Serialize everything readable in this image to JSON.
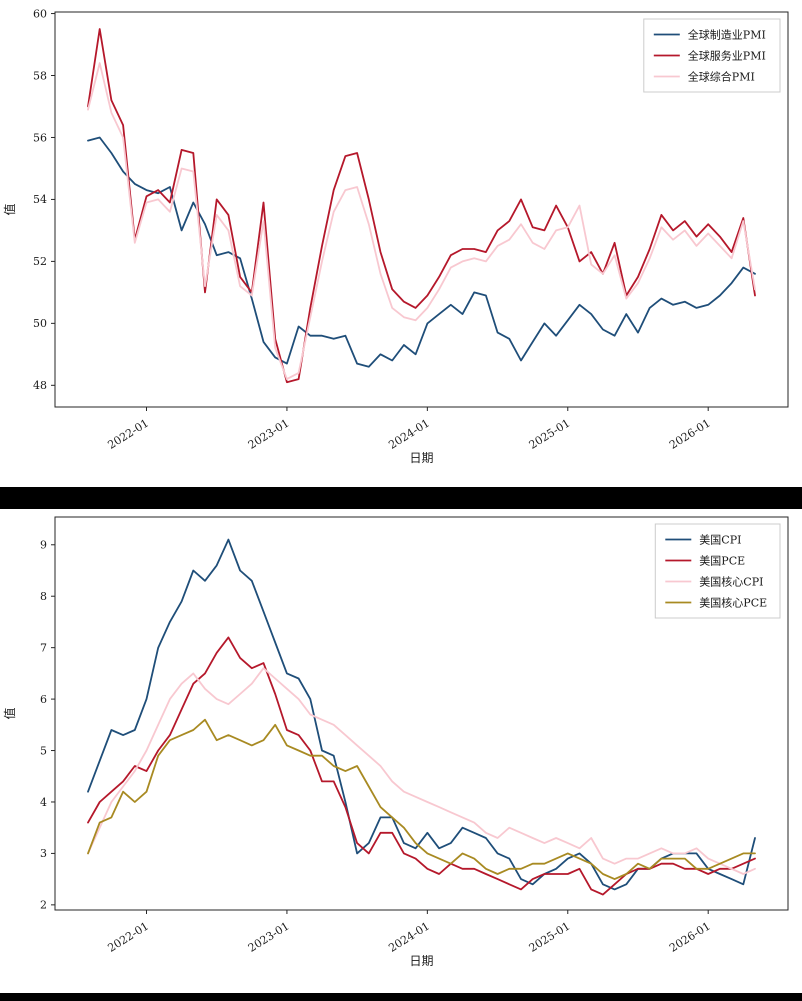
{
  "page": {
    "background": "#ffffff",
    "divider_color": "#000000"
  },
  "chart_data": [
    {
      "type": "line",
      "title": "",
      "xlabel": "日期",
      "ylabel": "值",
      "grid": false,
      "legend_position": "upper-right",
      "ylim": [
        47.3,
        60.05
      ],
      "yticks": [
        48,
        50,
        52,
        54,
        56,
        58,
        60
      ],
      "xticks": [
        "2022-01",
        "2023-01",
        "2024-01",
        "2025-01",
        "2026-01"
      ],
      "x": [
        "2021-08",
        "2021-09",
        "2021-10",
        "2021-11",
        "2021-12",
        "2022-01",
        "2022-02",
        "2022-03",
        "2022-04",
        "2022-05",
        "2022-06",
        "2022-07",
        "2022-08",
        "2022-09",
        "2022-10",
        "2022-11",
        "2022-12",
        "2023-01",
        "2023-02",
        "2023-03",
        "2023-04",
        "2023-05",
        "2023-06",
        "2023-07",
        "2023-08",
        "2023-09",
        "2023-10",
        "2023-11",
        "2023-12",
        "2024-01",
        "2024-02",
        "2024-03",
        "2024-04",
        "2024-05",
        "2024-06",
        "2024-07",
        "2024-08",
        "2024-09",
        "2024-10",
        "2024-11",
        "2024-12",
        "2025-01",
        "2025-02",
        "2025-03",
        "2025-04",
        "2025-05",
        "2025-06",
        "2025-07",
        "2025-08",
        "2025-09",
        "2025-10",
        "2025-11",
        "2025-12",
        "2026-01",
        "2026-02",
        "2026-03",
        "2026-04",
        "2026-05"
      ],
      "series": [
        {
          "name": "全球制造业PMI",
          "color": "#1f4e79",
          "values": [
            55.9,
            56.0,
            55.5,
            54.9,
            54.5,
            54.3,
            54.2,
            54.4,
            53.0,
            53.9,
            53.2,
            52.2,
            52.3,
            52.1,
            50.8,
            49.4,
            48.9,
            48.7,
            49.9,
            49.6,
            49.6,
            49.5,
            49.6,
            48.7,
            48.6,
            49.0,
            48.8,
            49.3,
            49.0,
            50.0,
            50.3,
            50.6,
            50.3,
            51.0,
            50.9,
            49.7,
            49.5,
            48.8,
            49.4,
            50.0,
            49.6,
            50.1,
            50.6,
            50.3,
            49.8,
            49.6,
            50.3,
            49.7,
            50.5,
            50.8,
            50.6,
            50.7,
            50.5,
            50.6,
            50.9,
            51.3,
            51.8,
            51.6
          ]
        },
        {
          "name": "全球服务业PMI",
          "color": "#b5182b",
          "values": [
            57.0,
            59.5,
            57.2,
            56.4,
            52.7,
            54.1,
            54.3,
            53.9,
            55.6,
            55.5,
            51.0,
            54.0,
            53.5,
            51.5,
            51.0,
            53.9,
            49.5,
            48.1,
            48.2,
            50.5,
            52.5,
            54.3,
            55.4,
            55.5,
            54.0,
            52.3,
            51.1,
            50.7,
            50.5,
            50.9,
            51.5,
            52.2,
            52.4,
            52.4,
            52.3,
            53.0,
            53.3,
            54.0,
            53.1,
            53.0,
            53.8,
            53.1,
            52.0,
            52.3,
            51.6,
            52.6,
            50.9,
            51.5,
            52.4,
            53.5,
            53.0,
            53.3,
            52.8,
            53.2,
            52.8,
            52.3,
            53.4,
            50.9
          ]
        },
        {
          "name": "全球综合PMI",
          "color": "#f8c8d0",
          "values": [
            56.9,
            58.4,
            56.8,
            56.0,
            52.6,
            53.9,
            54.0,
            53.6,
            55.0,
            54.9,
            51.2,
            53.5,
            53.0,
            51.2,
            50.9,
            53.3,
            49.2,
            48.2,
            48.4,
            50.2,
            52.0,
            53.6,
            54.3,
            54.4,
            53.2,
            51.6,
            50.5,
            50.2,
            50.1,
            50.5,
            51.1,
            51.8,
            52.0,
            52.1,
            52.0,
            52.5,
            52.7,
            53.2,
            52.6,
            52.4,
            53.0,
            53.1,
            53.8,
            51.9,
            51.6,
            52.2,
            50.8,
            51.3,
            52.1,
            53.1,
            52.7,
            53.0,
            52.5,
            52.9,
            52.5,
            52.1,
            53.3,
            51.1
          ]
        }
      ]
    },
    {
      "type": "line",
      "title": "",
      "xlabel": "日期",
      "ylabel": "值",
      "grid": false,
      "legend_position": "upper-right",
      "ylim": [
        1.9,
        9.54
      ],
      "yticks": [
        2,
        3,
        4,
        5,
        6,
        7,
        8,
        9
      ],
      "xticks": [
        "2022-01",
        "2023-01",
        "2024-01",
        "2025-01",
        "2026-01"
      ],
      "x": [
        "2021-08",
        "2021-09",
        "2021-10",
        "2021-11",
        "2021-12",
        "2022-01",
        "2022-02",
        "2022-03",
        "2022-04",
        "2022-05",
        "2022-06",
        "2022-07",
        "2022-08",
        "2022-09",
        "2022-10",
        "2022-11",
        "2022-12",
        "2023-01",
        "2023-02",
        "2023-03",
        "2023-04",
        "2023-05",
        "2023-06",
        "2023-07",
        "2023-08",
        "2023-09",
        "2023-10",
        "2023-11",
        "2023-12",
        "2024-01",
        "2024-02",
        "2024-03",
        "2024-04",
        "2024-05",
        "2024-06",
        "2024-07",
        "2024-08",
        "2024-09",
        "2024-10",
        "2024-11",
        "2024-12",
        "2025-01",
        "2025-02",
        "2025-03",
        "2025-04",
        "2025-05",
        "2025-06",
        "2025-07",
        "2025-08",
        "2025-09",
        "2025-10",
        "2025-11",
        "2025-12",
        "2026-01",
        "2026-02",
        "2026-03",
        "2026-04",
        "2026-05"
      ],
      "series": [
        {
          "name": "美国CPI",
          "color": "#1f4e79",
          "values": [
            4.2,
            4.8,
            5.4,
            5.3,
            5.4,
            6.0,
            7.0,
            7.5,
            7.9,
            8.5,
            8.3,
            8.6,
            9.1,
            8.5,
            8.3,
            7.7,
            7.1,
            6.5,
            6.4,
            6.0,
            5.0,
            4.9,
            4.0,
            3.0,
            3.2,
            3.7,
            3.7,
            3.2,
            3.1,
            3.4,
            3.1,
            3.2,
            3.5,
            3.4,
            3.3,
            3.0,
            2.9,
            2.5,
            2.4,
            2.6,
            2.7,
            2.9,
            3.0,
            2.8,
            2.4,
            2.3,
            2.4,
            2.7,
            2.7,
            2.9,
            3.0,
            3.0,
            3.0,
            2.7,
            2.6,
            2.5,
            2.4,
            3.3
          ]
        },
        {
          "name": "美国PCE",
          "color": "#b5182b",
          "values": [
            3.6,
            4.0,
            4.2,
            4.4,
            4.7,
            4.6,
            5.0,
            5.3,
            5.8,
            6.3,
            6.5,
            6.9,
            7.2,
            6.8,
            6.6,
            6.7,
            6.1,
            5.4,
            5.3,
            5.0,
            4.4,
            4.4,
            3.9,
            3.2,
            3.0,
            3.4,
            3.4,
            3.0,
            2.9,
            2.7,
            2.6,
            2.8,
            2.7,
            2.7,
            2.6,
            2.5,
            2.4,
            2.3,
            2.5,
            2.6,
            2.6,
            2.6,
            2.7,
            2.3,
            2.2,
            2.4,
            2.6,
            2.7,
            2.7,
            2.8,
            2.8,
            2.7,
            2.7,
            2.6,
            2.7,
            2.7,
            2.8,
            2.9
          ]
        },
        {
          "name": "美国核心CPI",
          "color": "#f8c8d0",
          "values": [
            3.0,
            3.5,
            4.0,
            4.3,
            4.6,
            5.0,
            5.5,
            6.0,
            6.3,
            6.5,
            6.2,
            6.0,
            5.9,
            6.1,
            6.3,
            6.6,
            6.4,
            6.2,
            6.0,
            5.7,
            5.6,
            5.5,
            5.3,
            5.1,
            4.9,
            4.7,
            4.4,
            4.2,
            4.1,
            4.0,
            3.9,
            3.8,
            3.7,
            3.6,
            3.4,
            3.3,
            3.5,
            3.4,
            3.3,
            3.2,
            3.3,
            3.2,
            3.1,
            3.3,
            2.9,
            2.8,
            2.9,
            2.9,
            3.0,
            3.1,
            3.0,
            3.0,
            3.1,
            2.9,
            2.8,
            2.7,
            2.6,
            2.7
          ]
        },
        {
          "name": "美国核心PCE",
          "color": "#a88a22",
          "values": [
            3.0,
            3.6,
            3.7,
            4.2,
            4.0,
            4.2,
            4.9,
            5.2,
            5.3,
            5.4,
            5.6,
            5.2,
            5.3,
            5.2,
            5.1,
            5.2,
            5.5,
            5.1,
            5.0,
            4.9,
            4.9,
            4.7,
            4.6,
            4.7,
            4.3,
            3.9,
            3.7,
            3.5,
            3.2,
            3.0,
            2.9,
            2.8,
            3.0,
            2.9,
            2.7,
            2.6,
            2.7,
            2.7,
            2.8,
            2.8,
            2.9,
            3.0,
            2.9,
            2.8,
            2.6,
            2.5,
            2.6,
            2.8,
            2.7,
            2.9,
            2.9,
            2.9,
            2.7,
            2.7,
            2.8,
            2.9,
            3.0,
            3.0
          ]
        }
      ]
    }
  ]
}
